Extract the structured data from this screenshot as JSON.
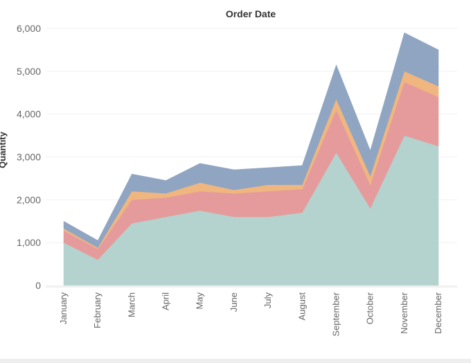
{
  "chart_data": {
    "type": "area",
    "stacked": true,
    "title": "Order Date",
    "xlabel": "",
    "ylabel": "Quantity",
    "ylim": [
      0,
      6000
    ],
    "yticks": [
      0,
      1000,
      2000,
      3000,
      4000,
      5000,
      6000
    ],
    "ytick_labels": [
      "0",
      "1,000",
      "2,000",
      "3,000",
      "4,000",
      "5,000",
      "6,000"
    ],
    "grid": true,
    "legend": "none",
    "categories": [
      "January",
      "February",
      "March",
      "April",
      "May",
      "June",
      "July",
      "August",
      "September",
      "October",
      "November",
      "December"
    ],
    "series": [
      {
        "color": "#b4d2ce",
        "values": [
          1000,
          600,
          1450,
          1600,
          1750,
          1600,
          1600,
          1700,
          3100,
          1800,
          3500,
          3250
        ]
      },
      {
        "color": "#e59b9b",
        "values": [
          280,
          250,
          550,
          450,
          450,
          550,
          600,
          550,
          1000,
          550,
          1250,
          1150
        ]
      },
      {
        "color": "#f0b67f",
        "values": [
          50,
          30,
          200,
          100,
          200,
          80,
          150,
          100,
          250,
          200,
          250,
          250
        ]
      },
      {
        "color": "#8fa5c2",
        "values": [
          170,
          170,
          400,
          300,
          450,
          470,
          400,
          450,
          800,
          600,
          900,
          850
        ]
      }
    ]
  }
}
